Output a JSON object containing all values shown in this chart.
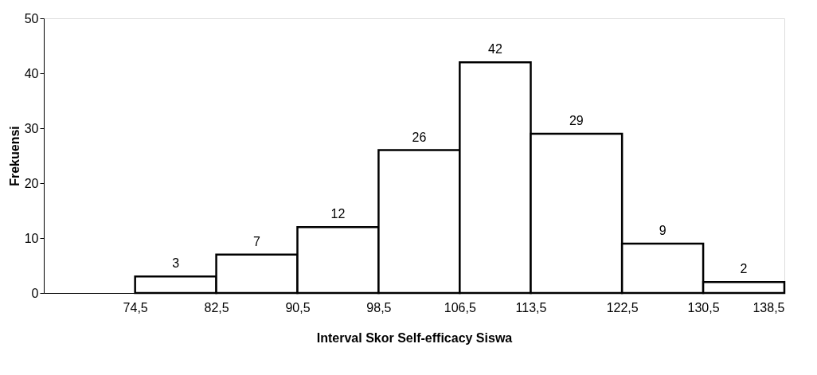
{
  "chart_data": {
    "type": "histogram",
    "xlabel": "Interval Skor Self-efficacy Siswa",
    "ylabel": "Frekuensi",
    "bins": [
      74.5,
      82.5,
      90.5,
      98.5,
      106.5,
      113.5,
      122.5,
      130.5,
      138.5
    ],
    "values": [
      3,
      7,
      12,
      26,
      42,
      29,
      9,
      2
    ],
    "color": "#ffffff",
    "xticks": [
      {
        "value": 74.5,
        "label": "74,5"
      },
      {
        "value": 82.5,
        "label": "82,5"
      },
      {
        "value": 90.5,
        "label": "90,5"
      },
      {
        "value": 98.5,
        "label": "98,5"
      },
      {
        "value": 106.5,
        "label": "106,5"
      },
      {
        "value": 113.5,
        "label": "113,5"
      },
      {
        "value": 122.5,
        "label": "122,5"
      },
      {
        "value": 130.5,
        "label": "130,5"
      },
      {
        "value": 138.5,
        "label": "138,5"
      }
    ],
    "ylim": [
      0,
      50
    ],
    "yticks": [
      0,
      10,
      20,
      30,
      40,
      50
    ],
    "xlim": [
      65.5,
      138.5
    ],
    "data_labels": true,
    "grid": false
  }
}
